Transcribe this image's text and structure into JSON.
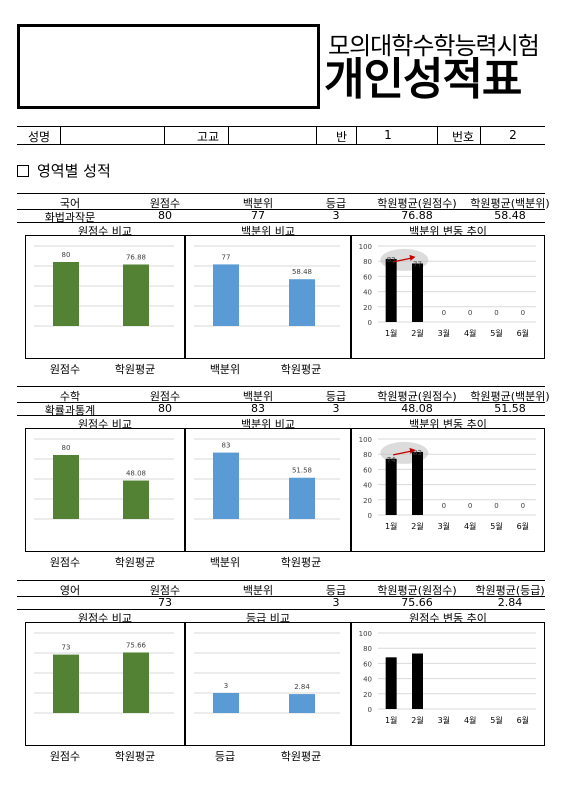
{
  "title": {
    "line1": "모의대학수학능력시험",
    "line2": "개인성적표"
  },
  "info": {
    "name_label": "성명",
    "name_value": "",
    "school_label": "고교",
    "school_value": "",
    "class_label": "반",
    "class_value": "1",
    "number_label": "번호",
    "number_value": "2"
  },
  "section_heading": "영역별 성적",
  "subjects": [
    {
      "headers": [
        "국어",
        "원점수",
        "백분위",
        "등급",
        "학원평균(원점수)",
        "학원평균(백분위)"
      ],
      "values": [
        "화법과작문",
        "80",
        "77",
        "3",
        "76.88",
        "58.48"
      ],
      "panels": [
        {
          "title": "원점수 비교",
          "color": "#548235",
          "categories": [
            "원점수",
            "학원평균"
          ],
          "values": [
            80,
            76.88
          ],
          "labels": [
            "80",
            "76.88"
          ],
          "ymax": 100
        },
        {
          "title": "백분위 비교",
          "color": "#5b9bd5",
          "categories": [
            "백분위",
            "학원평균"
          ],
          "values": [
            77,
            58.48
          ],
          "labels": [
            "77",
            "58.48"
          ],
          "ymax": 100
        },
        {
          "title": "백분위 변동 추이",
          "categories": [
            "1월",
            "2월",
            "3월",
            "4월",
            "5월",
            "6월"
          ],
          "values": [
            83,
            77,
            0,
            0,
            0,
            0
          ],
          "labels": [
            "83",
            "77",
            "0",
            "0",
            "0",
            "0"
          ],
          "ymax": 100,
          "yticks": [
            "0",
            "20",
            "40",
            "60",
            "80",
            "100"
          ],
          "highlight": true
        }
      ]
    },
    {
      "headers": [
        "수학",
        "원점수",
        "백분위",
        "등급",
        "학원평균(원점수)",
        "학원평균(백분위)"
      ],
      "values": [
        "확률과통계",
        "80",
        "83",
        "3",
        "48.08",
        "51.58"
      ],
      "panels": [
        {
          "title": "원점수 비교",
          "color": "#548235",
          "categories": [
            "원점수",
            "학원평균"
          ],
          "values": [
            80,
            48.08
          ],
          "labels": [
            "80",
            "48.08"
          ],
          "ymax": 100
        },
        {
          "title": "백분위 비교",
          "color": "#5b9bd5",
          "categories": [
            "백분위",
            "학원평균"
          ],
          "values": [
            83,
            51.58
          ],
          "labels": [
            "83",
            "51.58"
          ],
          "ymax": 100
        },
        {
          "title": "백분위 변동 추이",
          "categories": [
            "1월",
            "2월",
            "3월",
            "4월",
            "5월",
            "6월"
          ],
          "values": [
            74,
            83,
            0,
            0,
            0,
            0
          ],
          "labels": [
            "74",
            "83",
            "0",
            "0",
            "0",
            "0"
          ],
          "ymax": 100,
          "yticks": [
            "0",
            "20",
            "40",
            "60",
            "80",
            "100"
          ],
          "highlight": true
        }
      ]
    },
    {
      "headers": [
        "영어",
        "원점수",
        "백분위",
        "등급",
        "학원평균(원점수)",
        "학원평균(등급)"
      ],
      "values": [
        "",
        "73",
        "",
        "3",
        "75.66",
        "2.84"
      ],
      "panels": [
        {
          "title": "원점수 비교",
          "color": "#548235",
          "categories": [
            "원점수",
            "학원평균"
          ],
          "values": [
            73,
            75.66
          ],
          "labels": [
            "73",
            "75.66"
          ],
          "ymax": 100
        },
        {
          "title": "등급 비교",
          "color": "#5b9bd5",
          "categories": [
            "등급",
            "학원평균"
          ],
          "values": [
            3,
            2.84
          ],
          "labels": [
            "3",
            "2.84"
          ],
          "ymax": 12
        },
        {
          "title": "원점수 변동 추이",
          "categories": [
            "1월",
            "2월",
            "3월",
            "4월",
            "5월",
            "6월"
          ],
          "values": [
            68,
            73,
            0,
            0,
            0,
            0
          ],
          "labels": [
            "",
            "",
            "",
            "",
            "",
            ""
          ],
          "ymax": 100,
          "yticks": [
            "0",
            "20",
            "40",
            "60",
            "80",
            "100"
          ],
          "highlight": false
        }
      ]
    }
  ],
  "chart_data": [
    {
      "type": "bar",
      "title": "원점수 비교",
      "categories": [
        "원점수",
        "학원평균"
      ],
      "values": [
        80,
        76.88
      ]
    },
    {
      "type": "bar",
      "title": "백분위 비교",
      "categories": [
        "백분위",
        "학원평균"
      ],
      "values": [
        77,
        58.48
      ]
    },
    {
      "type": "bar",
      "title": "백분위 변동 추이",
      "categories": [
        "1월",
        "2월",
        "3월",
        "4월",
        "5월",
        "6월"
      ],
      "values": [
        83,
        77,
        0,
        0,
        0,
        0
      ],
      "ylim": [
        0,
        100
      ]
    },
    {
      "type": "bar",
      "title": "원점수 비교",
      "categories": [
        "원점수",
        "학원평균"
      ],
      "values": [
        80,
        48.08
      ]
    },
    {
      "type": "bar",
      "title": "백분위 비교",
      "categories": [
        "백분위",
        "학원평균"
      ],
      "values": [
        83,
        51.58
      ]
    },
    {
      "type": "bar",
      "title": "백분위 변동 추이",
      "categories": [
        "1월",
        "2월",
        "3월",
        "4월",
        "5월",
        "6월"
      ],
      "values": [
        74,
        83,
        0,
        0,
        0,
        0
      ],
      "ylim": [
        0,
        100
      ]
    },
    {
      "type": "bar",
      "title": "원점수 비교",
      "categories": [
        "원점수",
        "학원평균"
      ],
      "values": [
        73,
        75.66
      ]
    },
    {
      "type": "bar",
      "title": "등급 비교",
      "categories": [
        "등급",
        "학원평균"
      ],
      "values": [
        3,
        2.84
      ]
    },
    {
      "type": "bar",
      "title": "원점수 변동 추이",
      "categories": [
        "1월",
        "2월",
        "3월",
        "4월",
        "5월",
        "6월"
      ],
      "values": [
        68,
        73,
        0,
        0,
        0,
        0
      ],
      "ylim": [
        0,
        100
      ]
    }
  ]
}
